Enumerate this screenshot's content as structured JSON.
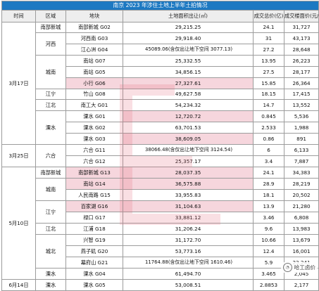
{
  "table": {
    "title": "南京 2023 年涉住土地上半年土拍情况",
    "headers": {
      "time": "时间",
      "district": "区域",
      "plot": "地块",
      "area": "土地面积出让(㎡)",
      "price": "成交总价(亿)",
      "floor_price": "成交楼面价(元/㎡)"
    },
    "rows": [
      {
        "time": "3月17日",
        "district": "南部新城",
        "plot": "南部新城 G02",
        "area": "29,215.25",
        "price": "24.1",
        "floor_price": "31,727"
      },
      {
        "district": "河西",
        "plot": "河西南 G03",
        "area": "29,918.40",
        "price": "31",
        "floor_price": "43,173"
      },
      {
        "plot": "江心洲 G04",
        "area": "45089.06(含仅出让地下空间 3077.13)",
        "price": "27.2",
        "floor_price": "28,648"
      },
      {
        "district": "城南",
        "plot": "南站 G07",
        "area": "25,332.55",
        "price": "13.95",
        "floor_price": "26,223"
      },
      {
        "plot": "南站 G05",
        "area": "34,856.15",
        "price": "27.5",
        "floor_price": "28,177"
      },
      {
        "plot": "小行 G06",
        "area": "27,327.61",
        "price": "15.85",
        "floor_price": "26,364"
      },
      {
        "district": "江宁",
        "plot": "竹山 G08",
        "area": "49,627.58",
        "price": "18.15",
        "floor_price": "17,415"
      },
      {
        "district": "江北",
        "plot": "南工大 G01",
        "area": "54,234.32",
        "price": "14.7",
        "floor_price": "13,552"
      },
      {
        "district": "溧水",
        "plot": "溧水 G01",
        "area": "12,720.72",
        "price": "0.845",
        "floor_price": "5,536"
      },
      {
        "plot": "溧水 G02",
        "area": "63,701.53",
        "price": "2.533",
        "floor_price": "1,988"
      },
      {
        "plot": "溧水 G03",
        "area": "38,609.05",
        "price": "0.86",
        "floor_price": "891"
      },
      {
        "time": "3月25日",
        "district": "六合",
        "plot": "六合 G11",
        "area": "38066.48(含仅出让地下空间 3124.54)",
        "price": "6",
        "floor_price": "6,133"
      },
      {
        "plot": "六合 G12",
        "area": "25,357.17",
        "price": "3.4",
        "floor_price": "7,887"
      },
      {
        "time": "5月10日",
        "district": "南部新城",
        "plot": "南部新城 G13",
        "area": "28,037.35",
        "price": "24.1",
        "floor_price": "34,383"
      },
      {
        "district": "城南",
        "plot": "南站 G14",
        "area": "36,575.88",
        "price": "28.9",
        "floor_price": "28,219"
      },
      {
        "plot": "人民南路 G15",
        "area": "33,955.83",
        "price": "18.1",
        "floor_price": "20,502"
      },
      {
        "district": "江宁",
        "plot": "百家湖 G16",
        "area": "31,104.63",
        "price": "13.9",
        "floor_price": "21,280"
      },
      {
        "plot": "禄口 G17",
        "area": "33,881.12",
        "price": "3.46",
        "floor_price": "6,808"
      },
      {
        "district": "江北",
        "plot": "江浦 G18",
        "area": "31,206.24",
        "price": "9.6",
        "floor_price": "13,983"
      },
      {
        "district": "城北",
        "plot": "兴智 G19",
        "area": "31,172.70",
        "price": "10.66",
        "floor_price": "13,679"
      },
      {
        "plot": "燕子矶 G20",
        "area": "53,773.16",
        "price": "12.4",
        "floor_price": "16,001"
      },
      {
        "plot": "幕府山 G21",
        "area": "11764.88(含仅出让地下空间 1610.46)",
        "price": "5.9",
        "floor_price": "23,241"
      },
      {
        "district": "溧水",
        "plot": "溧水 G04",
        "area": "61,494.70",
        "price": "3.465",
        "floor_price": "2,045"
      },
      {
        "time": "6月14日",
        "district": "溧水",
        "plot": "溧水 G05",
        "area": "53,008.51",
        "price": "2.8853",
        "floor_price": "2,177"
      }
    ]
  },
  "watermark": {
    "name": "哈工卤价",
    "icon": "wechat-logo-icon"
  },
  "colors": {
    "title_bg": "#1d79c2",
    "header_bg": "#eeeeee",
    "highlight": "#f6d6dd"
  }
}
